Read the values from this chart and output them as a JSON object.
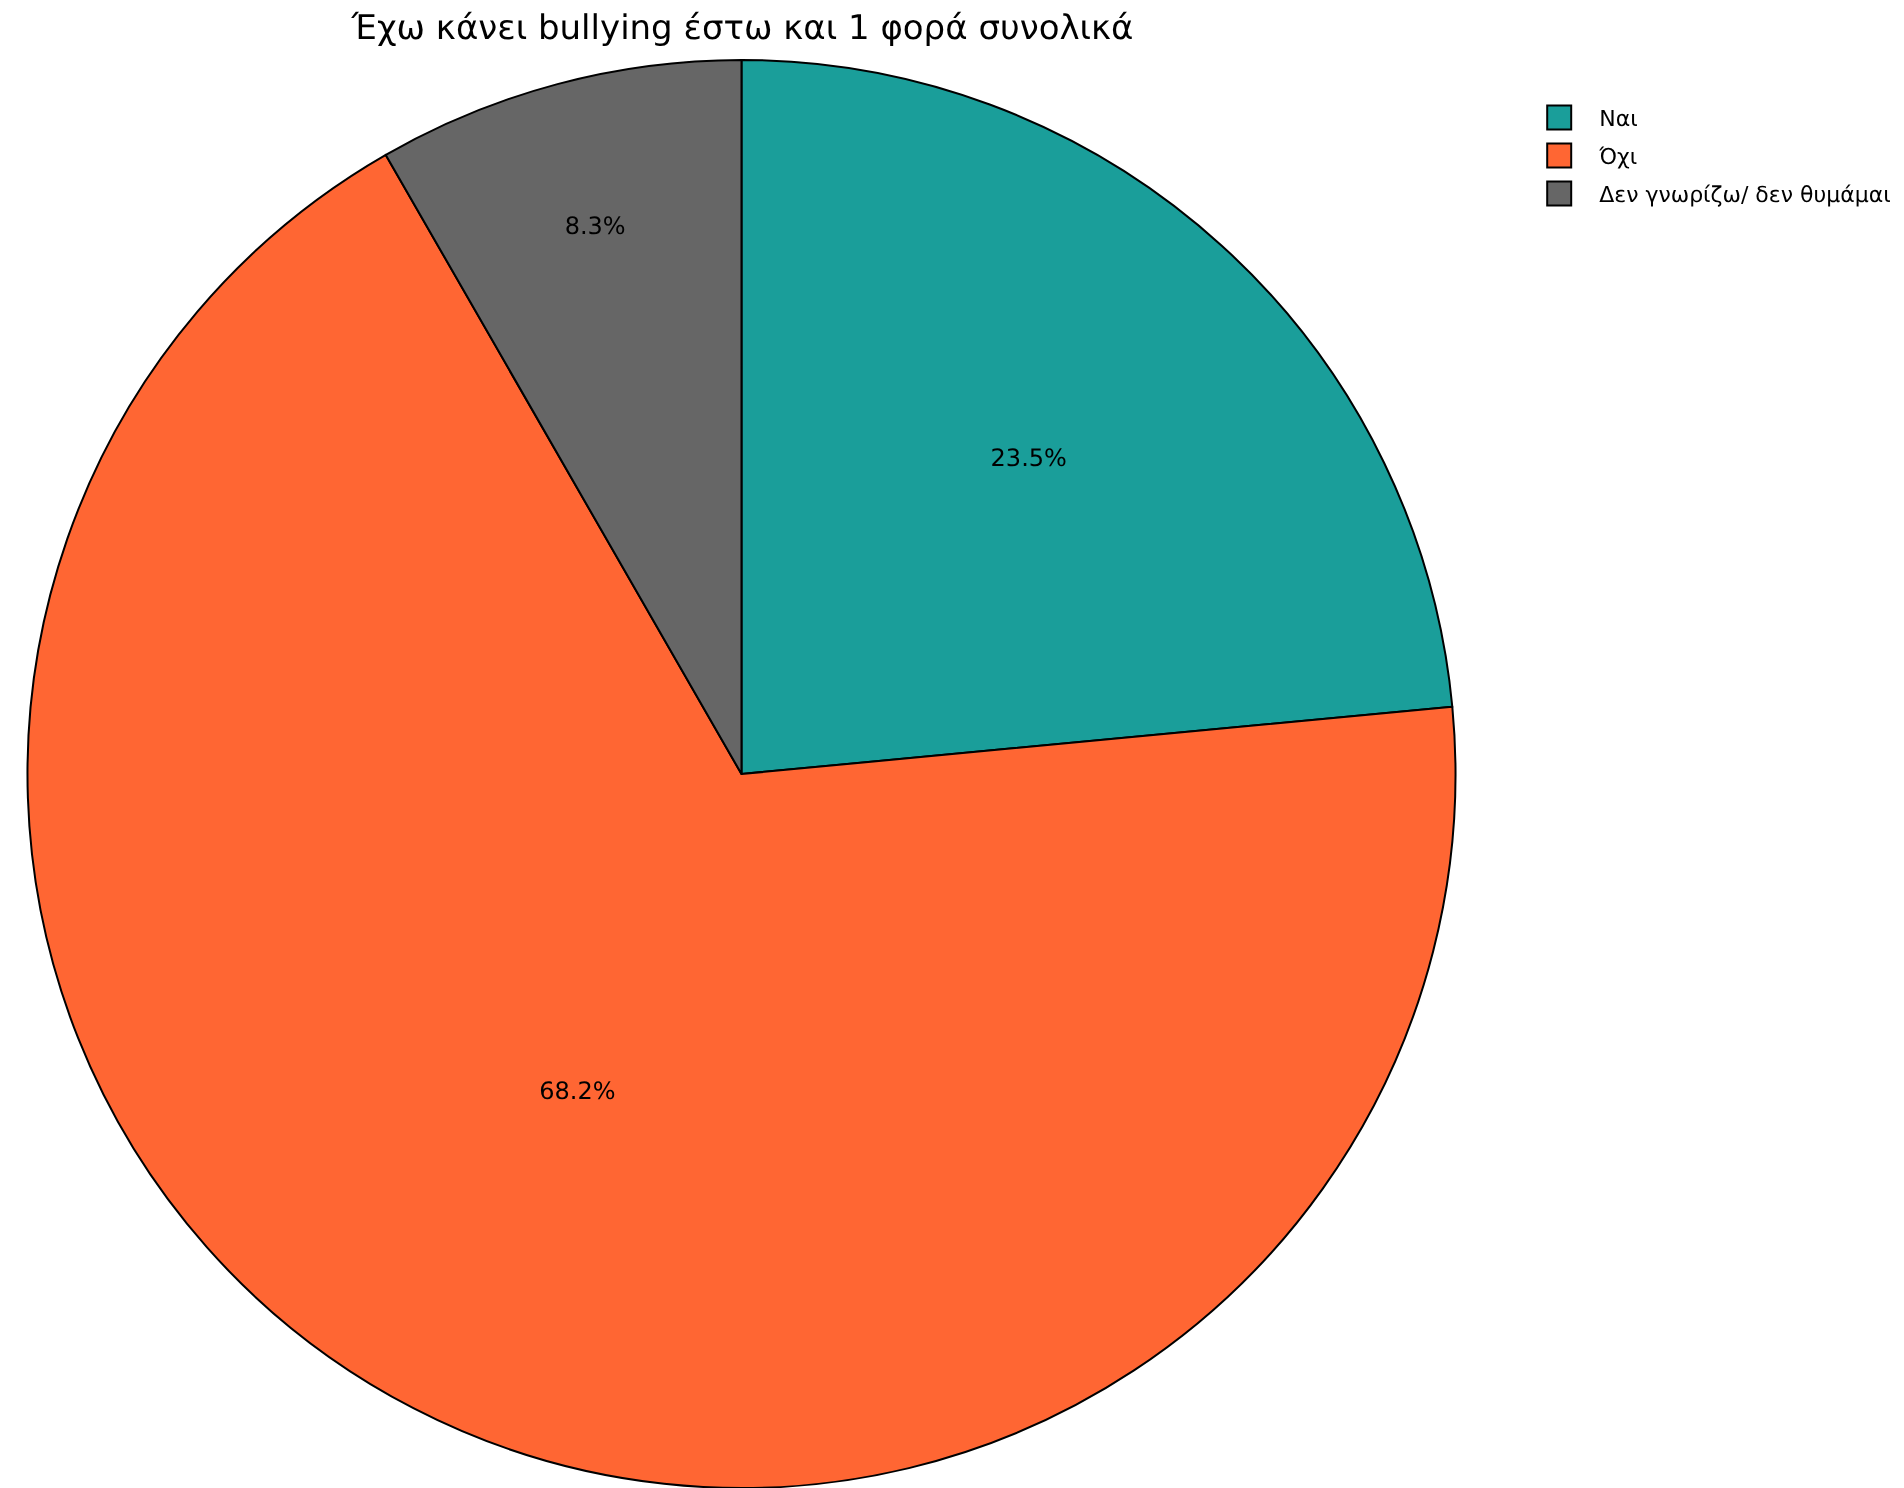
{
  "chart_data": {
    "type": "pie",
    "title": "Έχω κάνει bullying έστω και 1 φορά συνολικά",
    "categories": [
      "Ναι",
      "Όχι",
      "Δεν γνωρίζω/ δεν θυμάμαι"
    ],
    "values": [
      23.5,
      68.2,
      8.3
    ],
    "colors": [
      "#1a9e9a",
      "#ff6633",
      "#666666"
    ],
    "value_labels": [
      "23.5%",
      "68.2%",
      "8.3%"
    ],
    "legend": "top right"
  }
}
